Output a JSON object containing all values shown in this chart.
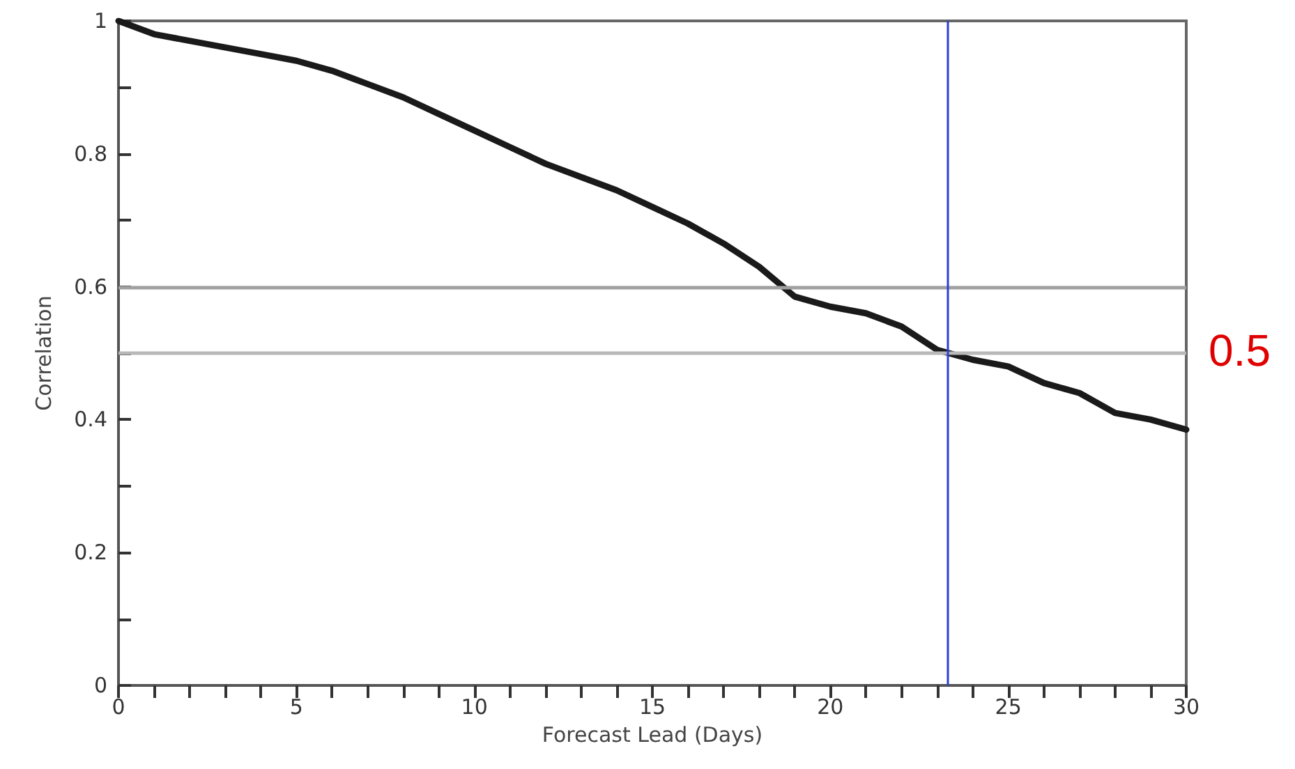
{
  "chart_data": {
    "type": "line",
    "xlabel": "Forecast Lead (Days)",
    "ylabel": "Correlation",
    "x": [
      0,
      1,
      2,
      3,
      4,
      5,
      6,
      7,
      8,
      9,
      10,
      11,
      12,
      13,
      14,
      15,
      16,
      17,
      18,
      19,
      20,
      21,
      22,
      23,
      24,
      25,
      26,
      27,
      28,
      29,
      30
    ],
    "series": [
      {
        "color": "#1a1a1a",
        "values": [
          1.0,
          0.98,
          0.97,
          0.96,
          0.95,
          0.94,
          0.925,
          0.905,
          0.885,
          0.86,
          0.835,
          0.81,
          0.785,
          0.765,
          0.745,
          0.72,
          0.695,
          0.665,
          0.63,
          0.585,
          0.57,
          0.56,
          0.54,
          0.505,
          0.49,
          0.48,
          0.455,
          0.44,
          0.41,
          0.4,
          0.385
        ]
      }
    ],
    "xlim": [
      0,
      30
    ],
    "ylim": [
      0,
      1
    ],
    "xticks": [
      0,
      {
        "value": 1,
        "label": null
      },
      {
        "value": 2,
        "label": null
      },
      {
        "value": 3,
        "label": null
      },
      {
        "value": 4,
        "label": null
      },
      5,
      {
        "value": 6,
        "label": null
      },
      {
        "value": 7,
        "label": null
      },
      {
        "value": 8,
        "label": null
      },
      {
        "value": 9,
        "label": null
      },
      10,
      {
        "value": 11,
        "label": null
      },
      {
        "value": 12,
        "label": null
      },
      {
        "value": 13,
        "label": null
      },
      {
        "value": 14,
        "label": null
      },
      15,
      {
        "value": 16,
        "label": null
      },
      {
        "value": 17,
        "label": null
      },
      {
        "value": 18,
        "label": null
      },
      {
        "value": 19,
        "label": null
      },
      20,
      {
        "value": 21,
        "label": null
      },
      {
        "value": 22,
        "label": null
      },
      {
        "value": 23,
        "label": null
      },
      {
        "value": 24,
        "label": null
      },
      25,
      {
        "value": 26,
        "label": null
      },
      {
        "value": 27,
        "label": null
      },
      {
        "value": 28,
        "label": null
      },
      {
        "value": 29,
        "label": null
      },
      30
    ],
    "yticks": [
      0,
      {
        "value": 0.1,
        "label": null
      },
      0.2,
      {
        "value": 0.3,
        "label": null
      },
      0.4,
      {
        "value": 0.5,
        "label": null
      },
      0.6,
      {
        "value": 0.7,
        "label": null
      },
      0.8,
      {
        "value": 0.9,
        "label": null
      },
      1
    ],
    "ref_lines": [
      {
        "axis": "y",
        "value": 0.6,
        "color": "#a0a0a0"
      },
      {
        "axis": "y",
        "value": 0.5,
        "color": "#b8b8b8"
      },
      {
        "axis": "x",
        "value": 23.3,
        "color": "#2b3fd6"
      }
    ],
    "annotations": [
      {
        "text": "0.5",
        "x": 30,
        "y": 0.5
      }
    ],
    "marker": "none",
    "line_style": "solid"
  }
}
